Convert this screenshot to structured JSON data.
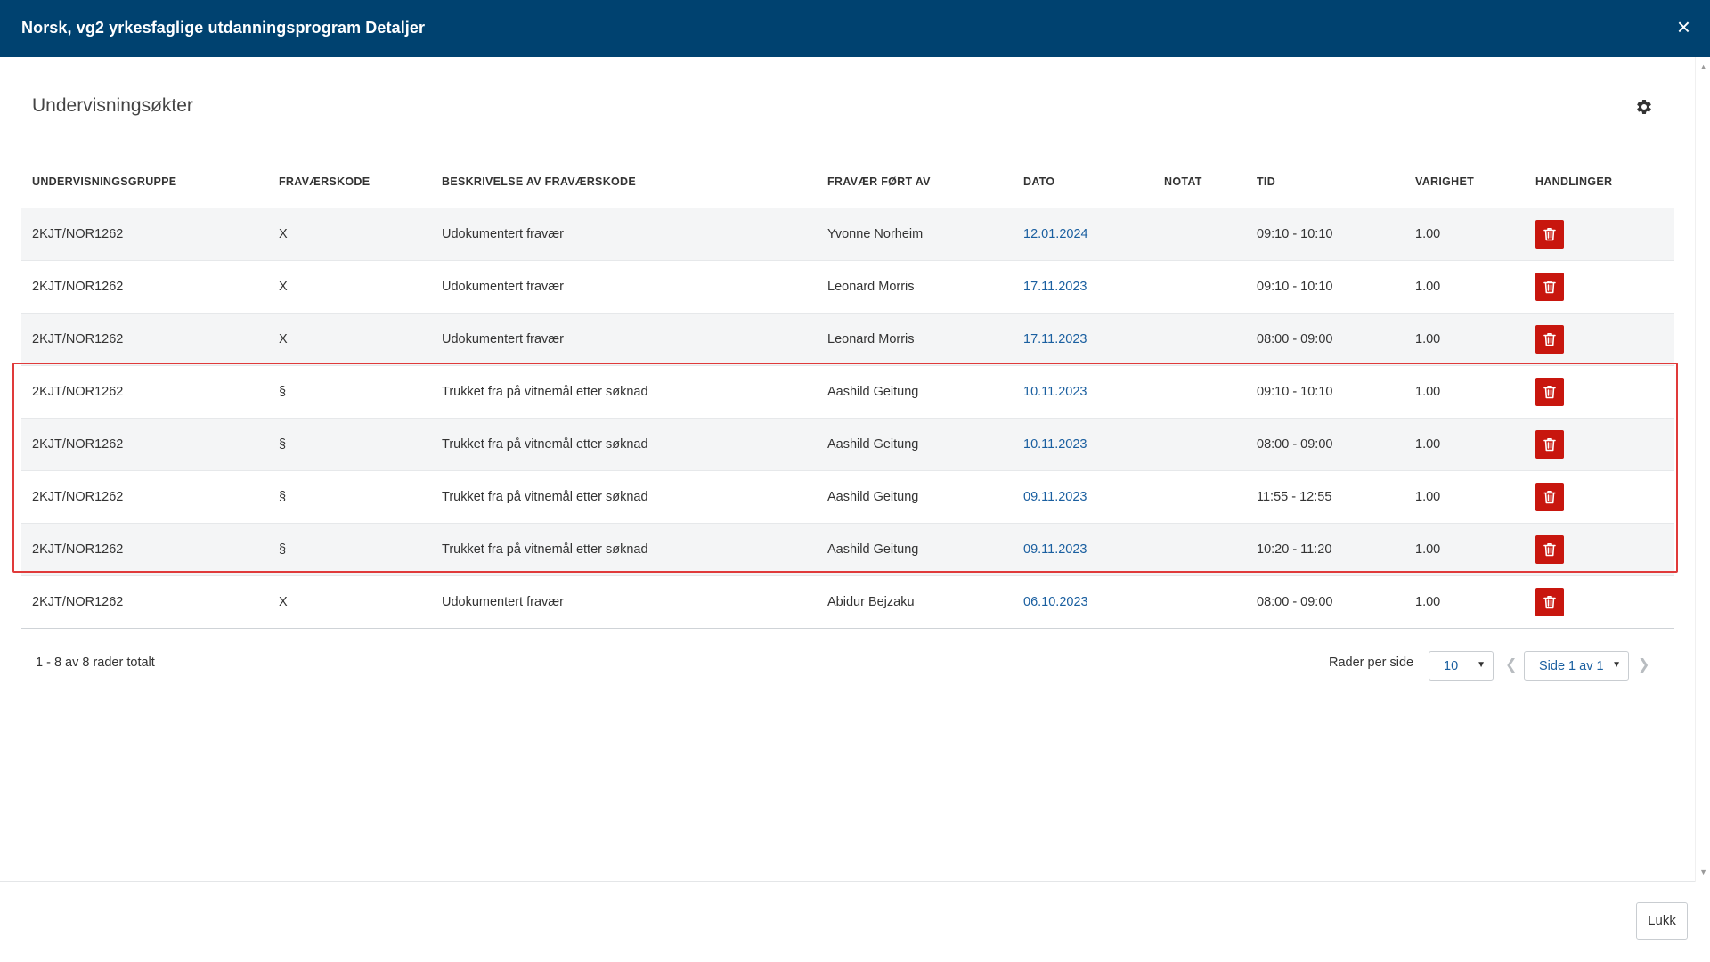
{
  "header": {
    "title": "Norsk, vg2 yrkesfaglige utdanningsprogram Detaljer",
    "close_label": "×"
  },
  "section": {
    "title": "Undervisningsøkter",
    "settings_icon": "gear-icon"
  },
  "table": {
    "columns": [
      "UNDERVISNINGSGRUPPE",
      "FRAVÆRSKODE",
      "BESKRIVELSE AV FRAVÆRSKODE",
      "FRAVÆR FØRT AV",
      "DATO",
      "NOTAT",
      "TID",
      "VARIGHET",
      "HANDLINGER"
    ],
    "rows": [
      {
        "group": "2KJT/NOR1262",
        "code": "X",
        "description": "Udokumentert fravær",
        "registered_by": "Yvonne Norheim",
        "date": "12.01.2024",
        "note": "",
        "time": "09:10 - 10:10",
        "duration": "1.00"
      },
      {
        "group": "2KJT/NOR1262",
        "code": "X",
        "description": "Udokumentert fravær",
        "registered_by": "Leonard Morris",
        "date": "17.11.2023",
        "note": "",
        "time": "09:10 - 10:10",
        "duration": "1.00"
      },
      {
        "group": "2KJT/NOR1262",
        "code": "X",
        "description": "Udokumentert fravær",
        "registered_by": "Leonard Morris",
        "date": "17.11.2023",
        "note": "",
        "time": "08:00 - 09:00",
        "duration": "1.00"
      },
      {
        "group": "2KJT/NOR1262",
        "code": "§",
        "description": "Trukket fra på vitnemål etter søknad",
        "registered_by": "Aashild Geitung",
        "date": "10.11.2023",
        "note": "",
        "time": "09:10 - 10:10",
        "duration": "1.00"
      },
      {
        "group": "2KJT/NOR1262",
        "code": "§",
        "description": "Trukket fra på vitnemål etter søknad",
        "registered_by": "Aashild Geitung",
        "date": "10.11.2023",
        "note": "",
        "time": "08:00 - 09:00",
        "duration": "1.00"
      },
      {
        "group": "2KJT/NOR1262",
        "code": "§",
        "description": "Trukket fra på vitnemål etter søknad",
        "registered_by": "Aashild Geitung",
        "date": "09.11.2023",
        "note": "",
        "time": "11:55 - 12:55",
        "duration": "1.00"
      },
      {
        "group": "2KJT/NOR1262",
        "code": "§",
        "description": "Trukket fra på vitnemål etter søknad",
        "registered_by": "Aashild Geitung",
        "date": "09.11.2023",
        "note": "",
        "time": "10:20 - 11:20",
        "duration": "1.00"
      },
      {
        "group": "2KJT/NOR1262",
        "code": "X",
        "description": "Udokumentert fravær",
        "registered_by": "Abidur Bejzaku",
        "date": "06.10.2023",
        "note": "",
        "time": "08:00 - 09:00",
        "duration": "1.00"
      }
    ],
    "action_icon": "trash-icon"
  },
  "pagination": {
    "summary": "1 - 8 av 8 rader totalt",
    "rows_per_page_label": "Rader per side",
    "rows_per_page_value": "10",
    "page_value": "Side 1 av 1",
    "prev_icon": "chevron-left-icon",
    "next_icon": "chevron-right-icon"
  },
  "footer": {
    "close_label": "Lukk"
  },
  "colors": {
    "header_bg": "#004270",
    "delete_button": "#c8160e",
    "link": "#1a5fa0",
    "highlight_border": "#e03a3a"
  }
}
